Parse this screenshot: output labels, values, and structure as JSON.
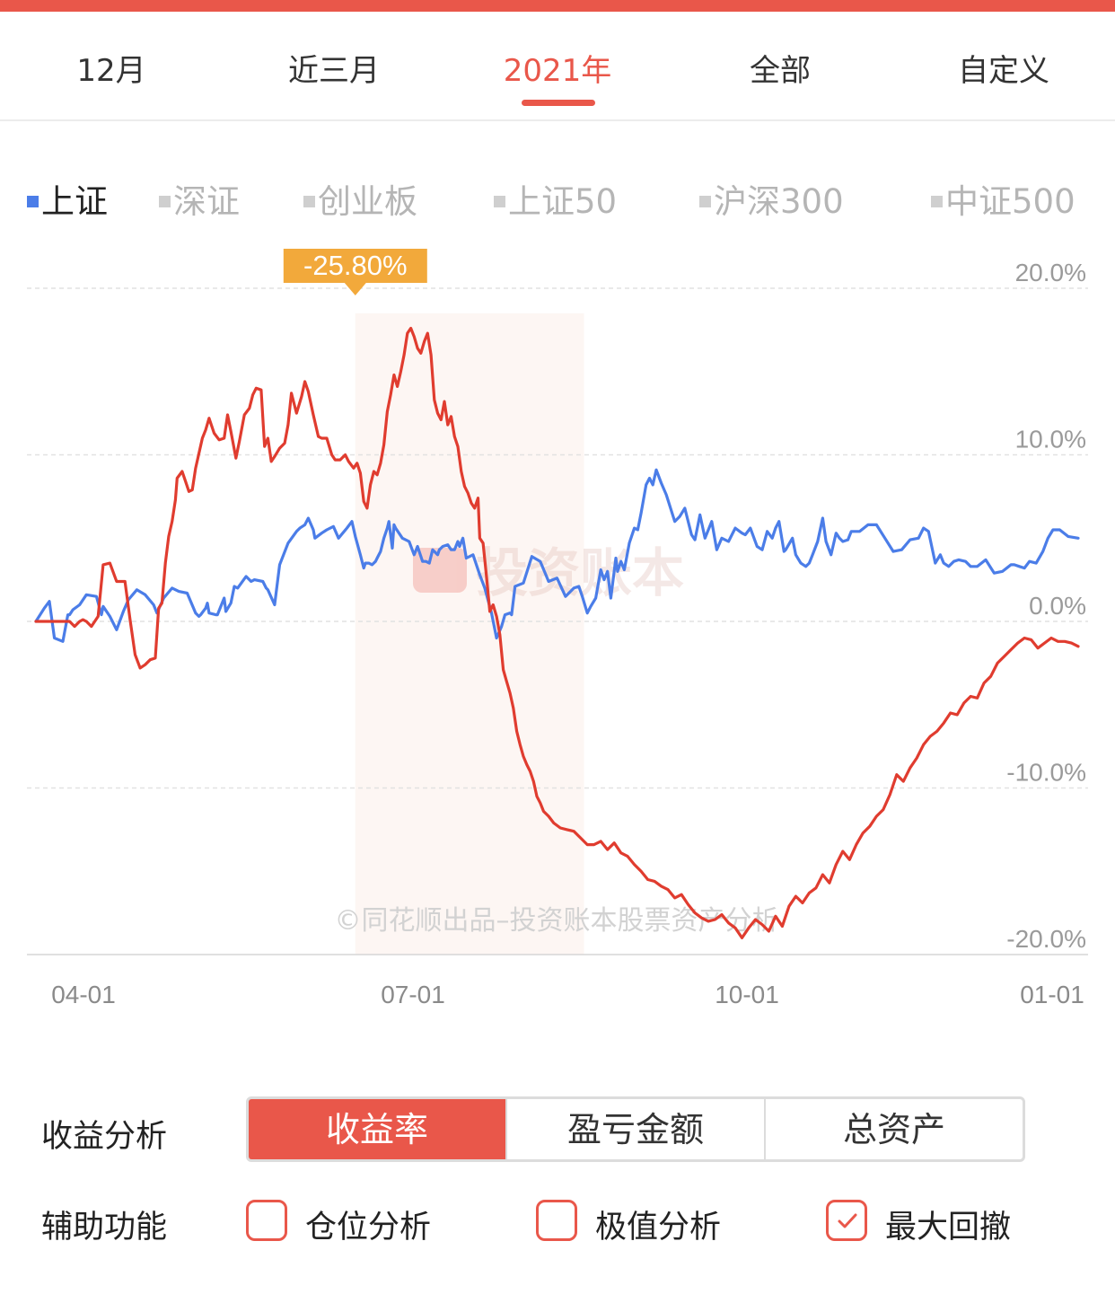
{
  "period_tabs": [
    "12月",
    "近三月",
    "2021年",
    "全部",
    "自定义"
  ],
  "active_period": "2021年",
  "index_legend": [
    "上证",
    "深证",
    "创业板",
    "上证50",
    "沪深300",
    "中证500"
  ],
  "active_index": "上证",
  "colors": {
    "accent": "#e9574a",
    "portfolio_line": "#e03c2f",
    "index_line": "#4b7de8",
    "tooltip": "#f2a93b"
  },
  "watermark_logo_text": "投资账本",
  "watermark_text": "©同花顺出品–投资账本股票资产分析",
  "drawdown_tooltip": "-25.80%",
  "chart_data": {
    "type": "line",
    "ylim": [
      -20,
      20
    ],
    "y_ticks": [
      "20.0%",
      "10.0%",
      "0.0%",
      "-10.0%",
      "-20.0%"
    ],
    "x_ticks": [
      "04-01",
      "07-01",
      "10-01",
      "01-01"
    ],
    "max_drawdown": {
      "label": "-25.80%",
      "from_day": 190,
      "to_day": 326
    },
    "series": [
      {
        "name": "上证",
        "days": [
          0,
          5,
          8,
          11,
          16,
          19,
          20,
          22,
          26,
          30,
          36,
          39,
          40,
          44,
          48,
          52,
          55,
          60,
          65,
          70,
          72,
          76,
          81,
          85,
          90,
          95,
          97,
          98,
          101,
          102,
          103,
          107,
          108,
          112,
          113,
          116,
          118,
          120,
          125,
          128,
          130,
          135,
          137,
          138,
          142,
          145,
          150,
          155,
          157,
          160,
          162,
          165,
          166,
          170,
          173,
          177,
          180,
          185,
          188,
          190,
          193,
          195,
          196,
          198,
          200,
          202,
          203,
          205,
          207,
          209,
          210,
          212,
          213,
          214,
          218,
          222,
          225,
          227,
          230,
          232,
          234,
          236,
          239,
          240,
          242,
          245,
          247,
          249,
          251,
          252,
          254,
          256,
          260,
          264,
          267,
          271,
          274,
          277,
          279,
          282,
          283,
          285,
          290,
          295,
          300,
          305,
          310,
          315,
          320,
          323,
          325,
          328,
          330,
          333,
          336,
          338,
          340,
          342,
          345,
          346,
          348,
          350,
          353,
          356,
          358,
          360,
          363,
          365,
          367,
          369,
          372,
          375,
          380,
          383,
          386,
          390,
          392,
          395,
          398,
          402,
          405,
          408,
          412,
          416,
          420,
          422,
          425,
          429,
          432,
          435,
          438,
          440,
          442,
          445
        ],
        "values": [
          0,
          0.8,
          1.2,
          -1,
          -1.2,
          0.4,
          0.4,
          0.7,
          1.0,
          1.6,
          1.5,
          0.4,
          0.9,
          0.3,
          -0.5,
          0.6,
          1.3,
          1.9,
          1.6,
          1.0,
          0.5,
          1.4,
          2.0,
          1.8,
          1.7,
          0.5,
          0.3,
          0.4,
          0.8,
          1.1,
          0.5,
          0.4,
          0.4,
          1.4,
          0.6,
          1.1,
          2.1,
          2.0,
          2.7,
          2.4,
          2.5,
          2.4,
          2.0,
          1.9,
          1.0,
          3.4,
          4.7,
          5.4,
          5.6,
          5.8,
          6.2,
          5.5,
          5.0,
          5.3,
          5.5,
          5.7,
          5.0,
          5.6,
          6.0,
          5.1,
          4.0,
          3.2,
          3.5,
          3.5,
          3.4,
          3.6,
          3.8,
          4.2,
          5.0,
          5.6,
          6.0,
          4.4,
          5.8,
          5.6,
          5.0,
          4.8,
          4.0,
          4.5,
          3.6,
          3.6,
          3.5,
          4.3,
          4.0,
          4.3,
          4.5,
          4.6,
          4.3,
          4.3,
          4.8,
          4.5,
          5.0,
          3.8,
          4.0,
          2.8,
          2.0,
          0.5,
          -1.0,
          -0.3,
          0.4,
          0.5,
          0.4,
          2.1,
          2.3,
          3.9,
          3.6,
          2.4,
          2.6,
          1.5,
          2.0,
          2.1,
          1.5,
          0.5,
          0.9,
          1.4,
          3.1,
          2.5,
          3.0,
          1.4,
          3.8,
          3.0,
          3.6,
          3.1,
          4.7,
          5.6,
          5.5,
          6.5,
          8.2,
          8.6,
          8.2,
          9.1,
          8.3,
          7.6,
          6.0,
          6.3,
          6.8,
          5.2,
          4.9,
          6.4,
          5.0,
          6.0,
          4.3,
          5.0,
          4.8,
          5.6,
          5.3,
          5.2,
          5.6,
          4.5,
          4.3,
          5.4,
          5.0,
          5.6,
          6.0,
          4.2
        ],
        "days2": [
          446,
          450,
          452,
          455,
          458,
          460,
          462,
          465,
          468,
          470,
          473,
          476,
          478,
          480,
          483,
          485,
          490,
          495,
          500,
          505,
          510,
          515,
          520,
          525,
          528,
          531,
          535,
          538,
          540,
          543,
          546,
          549,
          553,
          556,
          560,
          565,
          570,
          575,
          580,
          582,
          585,
          588,
          591,
          595,
          599,
          602,
          605,
          609,
          614,
          620
        ],
        "values2": [
          4.3,
          5.0,
          4.0,
          3.5,
          3.3,
          3.5,
          4.0,
          4.8,
          6.2,
          4.8,
          4.0,
          5.3,
          5.0,
          4.8,
          4.9,
          5.4,
          5.4,
          5.8,
          5.8,
          5.0,
          4.2,
          4.3,
          4.9,
          5.0,
          5.6,
          5.4,
          3.5,
          4.0,
          3.5,
          3.3,
          3.6,
          3.7,
          3.6,
          3.3,
          3.3,
          3.7,
          2.9,
          3.0,
          3.4,
          3.4,
          3.3,
          3.2,
          3.6,
          3.5,
          4.2,
          5.0,
          5.5,
          5.5,
          5.1,
          5.0
        ]
      },
      {
        "name": "portfolio",
        "days": [
          0,
          5,
          8,
          11,
          16,
          20,
          23,
          26,
          28,
          30,
          33,
          37,
          40,
          44,
          48,
          53,
          56,
          59,
          62,
          65,
          68,
          71,
          73,
          75,
          77,
          79,
          81,
          83,
          84,
          87,
          89,
          91,
          93,
          95,
          99,
          101,
          103,
          106,
          109,
          112,
          114,
          116,
          119,
          121,
          124,
          127,
          129,
          131,
          134,
          136,
          138,
          140,
          142,
          145,
          148,
          150,
          152,
          155,
          158,
          160,
          162,
          165,
          168,
          170,
          173,
          176,
          178,
          181,
          184,
          186,
          189,
          191,
          193,
          195,
          197,
          199,
          201,
          203,
          205,
          207,
          209,
          211,
          213,
          215,
          217,
          219,
          221,
          223,
          225,
          227,
          229,
          231,
          233,
          235,
          237,
          239,
          241,
          243,
          245,
          247,
          249,
          251,
          253,
          255,
          257,
          259,
          261,
          263
        ],
        "values": [
          0,
          0,
          0,
          0,
          0,
          0,
          -0.3,
          0,
          0.1,
          0,
          -0.3,
          0.3,
          3.4,
          3.5,
          2.4,
          2.4,
          0.1,
          -2.0,
          -2.8,
          -2.6,
          -2.3,
          -2.2,
          0.8,
          1.1,
          3.5,
          5.1,
          6.0,
          7.3,
          8.6,
          9.0,
          8.4,
          7.8,
          7.9,
          9.2,
          11.0,
          11.5,
          12.2,
          11.3,
          10.9,
          11.0,
          12.4,
          11.4,
          9.8,
          10.8,
          12.4,
          12.8,
          13.6,
          14.0,
          13.9,
          10.5,
          11.0,
          9.6,
          9.9,
          10.4,
          10.7,
          11.8,
          13.7,
          12.5,
          13.5,
          14.4,
          13.8,
          12.4,
          11.1,
          11.0,
          11.0,
          10.0,
          9.7,
          9.7,
          10.0,
          9.6,
          9.2,
          9.5,
          8.9,
          7.2,
          6.8,
          8.2,
          9.0,
          8.8,
          9.5,
          10.6,
          12.6,
          13.6,
          14.8,
          14.1,
          15.0,
          16.0,
          17.3,
          17.6,
          17.1,
          16.4,
          16.1,
          16.8,
          17.3,
          16.0,
          13.3,
          12.5,
          12.1,
          13.2,
          11.8,
          12.3,
          11.1,
          10.5,
          9.0,
          8.1,
          7.7,
          7.1,
          6.8,
          7.4
        ],
        "days2": [
          264,
          266,
          268,
          270,
          272,
          274,
          276,
          278,
          280,
          282,
          284,
          286,
          288,
          290,
          292,
          294,
          296,
          298,
          300,
          302,
          305,
          308,
          312,
          316,
          320,
          324,
          328,
          332,
          336,
          340,
          344,
          348,
          352,
          356,
          360,
          364,
          368,
          372,
          376,
          380,
          384,
          388,
          392,
          396,
          400,
          404,
          408,
          412,
          416,
          420,
          424,
          428,
          432,
          436,
          440,
          444,
          448,
          452,
          456,
          460,
          464,
          468,
          472,
          476,
          480,
          484,
          488,
          492,
          496,
          500,
          504,
          508,
          512,
          516,
          520,
          524,
          528,
          532,
          536,
          540,
          544,
          548,
          552,
          556,
          560,
          564,
          568,
          572,
          576,
          580,
          584,
          588,
          592,
          596,
          600,
          604,
          608,
          612,
          616,
          620
        ],
        "values2": [
          5.0,
          4.7,
          2.7,
          0.6,
          1.0,
          0.3,
          -0.8,
          -2.9,
          -3.6,
          -4.3,
          -5.2,
          -6.6,
          -7.4,
          -8.1,
          -8.6,
          -9.0,
          -9.6,
          -10.5,
          -10.9,
          -11.4,
          -11.7,
          -12.1,
          -12.4,
          -12.5,
          -12.6,
          -13.0,
          -13.4,
          -13.4,
          -13.2,
          -13.7,
          -13.3,
          -13.9,
          -14.1,
          -14.6,
          -15.0,
          -15.5,
          -15.6,
          -15.9,
          -16.1,
          -16.6,
          -16.4,
          -17.0,
          -17.5,
          -17.8,
          -18.0,
          -17.9,
          -17.6,
          -18.1,
          -18.4,
          -19.0,
          -18.4,
          -17.9,
          -18.2,
          -18.6,
          -17.7,
          -18.3,
          -17.1,
          -16.5,
          -16.9,
          -16.3,
          -16.0,
          -15.2,
          -15.7,
          -14.6,
          -13.8,
          -14.3,
          -13.4,
          -12.7,
          -12.3,
          -11.7,
          -11.3,
          -10.4,
          -9.2,
          -9.6,
          -8.8,
          -8.2,
          -7.4,
          -6.9,
          -6.6,
          -6.1,
          -5.5,
          -5.6,
          -4.9,
          -4.5,
          -4.6,
          -3.7,
          -3.3,
          -2.5,
          -2.1,
          -1.7,
          -1.3,
          -1.0,
          -1.1,
          -1.6,
          -1.3,
          -1.0,
          -1.2,
          -1.2,
          -1.3,
          -1.5
        ]
      }
    ]
  },
  "analysis": {
    "profit_label": "收益分析",
    "profit_options": [
      "收益率",
      "盈亏金额",
      "总资产"
    ],
    "active_option": "收益率",
    "aux_label": "辅助功能",
    "aux_options": [
      {
        "label": "仓位分析",
        "checked": false
      },
      {
        "label": "极值分析",
        "checked": false
      },
      {
        "label": "最大回撤",
        "checked": true
      }
    ]
  }
}
